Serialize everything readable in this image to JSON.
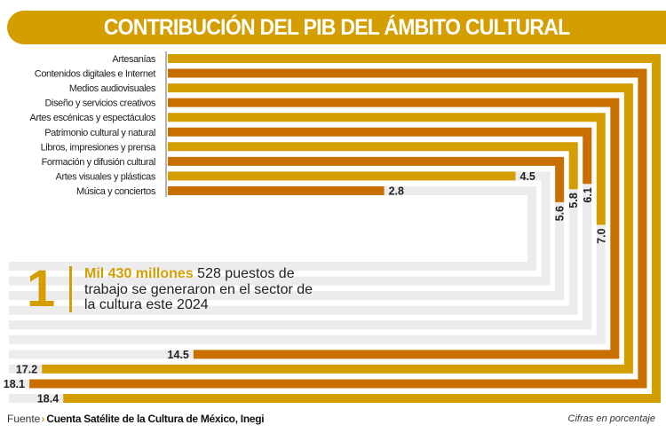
{
  "title": "CONTRIBUCIÓN DEL PIB DEL ÁMBITO CULTURAL",
  "colors": {
    "gold": "#D59E00",
    "orange": "#C96F00",
    "track": "#ECECEC"
  },
  "chart_data": {
    "type": "bar",
    "title": "CONTRIBUCIÓN DEL PIB DEL ÁMBITO CULTURAL",
    "unit_note": "Cifras en porcentaje",
    "categories": [
      "Artesanías",
      "Contenidos digitales e Internet",
      "Medios audiovisuales",
      "Diseño y servicios creativos",
      "Artes escénicas y espectáculos",
      "Patrimonio cultural y natural",
      "Libros, impresiones y prensa",
      "Formación y difusión cultural",
      "Artes visuales y plásticas",
      "Música y conciertos"
    ],
    "values": [
      18.4,
      18.1,
      17.2,
      14.5,
      7.0,
      6.1,
      5.8,
      5.6,
      4.5,
      2.8
    ],
    "labels": [
      "18.4",
      "18.1",
      "17.2",
      "14.5",
      "7.0",
      "6.1",
      "5.8",
      "5.6",
      "4.5",
      "2.8"
    ],
    "bar_colors": [
      "gold",
      "orange",
      "gold",
      "orange",
      "gold",
      "orange",
      "gold",
      "orange",
      "gold",
      "orange"
    ]
  },
  "callout": {
    "number": "1",
    "highlight": "Mil 430 millones",
    "text": " 528 puestos de trabajo se generaron en el sector de la cultura este 2024"
  },
  "footer": {
    "source_label": "Fuente",
    "chevron": "›",
    "source": "Cuenta Satélite de la Cultura de México, Inegi",
    "note": "Cifras en porcentaje"
  }
}
